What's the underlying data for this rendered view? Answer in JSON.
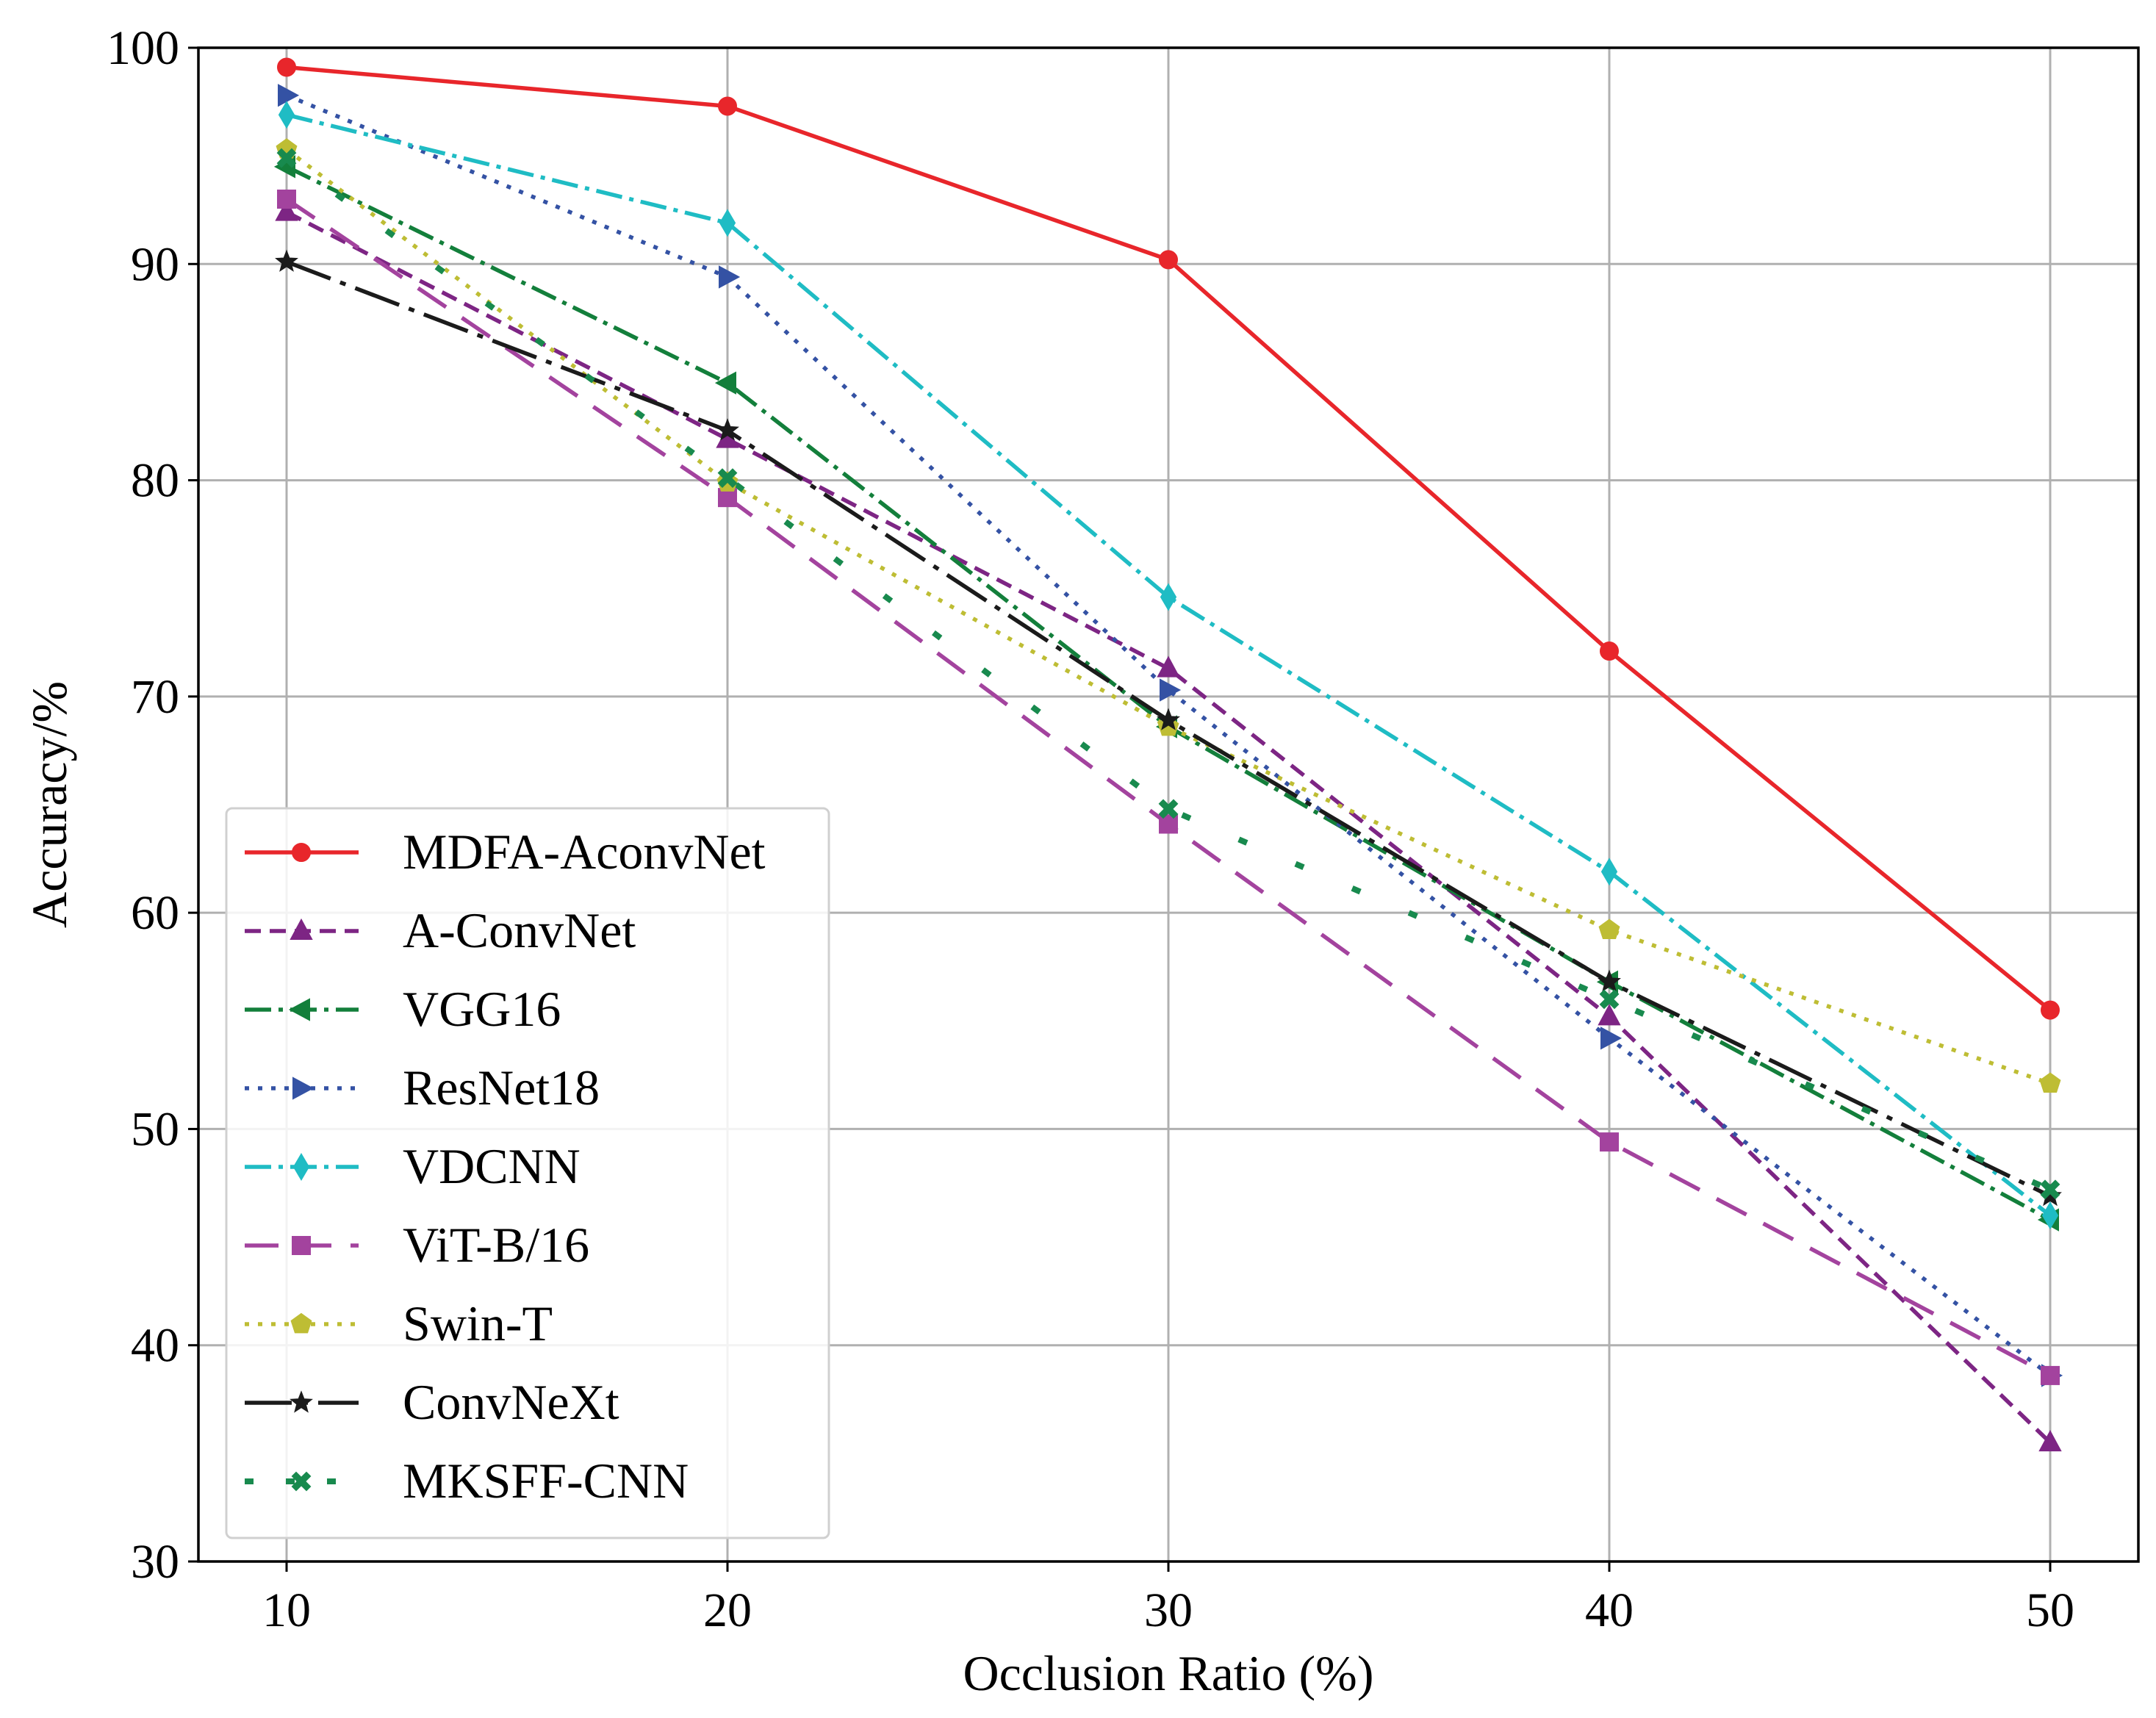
{
  "chart_data": {
    "type": "line",
    "title": "",
    "xlabel": "Occlusion Ratio (%)",
    "ylabel": "Accuracy/%",
    "x": [
      10,
      20,
      30,
      40,
      50
    ],
    "xticks": [
      "10",
      "20",
      "30",
      "40",
      "50"
    ],
    "yticks": [
      "30",
      "40",
      "50",
      "60",
      "70",
      "80",
      "90",
      "100"
    ],
    "xlim": [
      8,
      52
    ],
    "ylim": [
      30,
      100
    ],
    "grid": true,
    "legend_position": "lower-left",
    "series": [
      {
        "name": "MDFA-AconvNet",
        "color": "#e8262b",
        "dash": "solid",
        "marker": "circle",
        "values": [
          99.1,
          97.3,
          90.2,
          72.1,
          55.5
        ]
      },
      {
        "name": "A-ConvNet",
        "color": "#7d2584",
        "dash": "dashed",
        "marker": "triangle-up",
        "values": [
          92.4,
          81.9,
          71.3,
          55.2,
          35.5
        ]
      },
      {
        "name": "VGG16",
        "color": "#137f3b",
        "dash": "dashdot",
        "marker": "triangle-left",
        "values": [
          94.5,
          84.5,
          68.6,
          56.8,
          45.8
        ]
      },
      {
        "name": "ResNet18",
        "color": "#3452a4",
        "dash": "dotted",
        "marker": "triangle-right",
        "values": [
          97.8,
          89.4,
          70.3,
          54.2,
          38.6
        ]
      },
      {
        "name": "VDCNN",
        "color": "#1fbcc4",
        "dash": "dashdot",
        "marker": "thin-diamond",
        "values": [
          96.9,
          91.9,
          74.6,
          61.9,
          46.0
        ]
      },
      {
        "name": "ViT-B/16",
        "color": "#a3439e",
        "dash": "longdash",
        "marker": "square",
        "values": [
          93.0,
          79.2,
          64.1,
          49.4,
          38.6
        ]
      },
      {
        "name": "Swin-T",
        "color": "#bebd34",
        "dash": "dotted",
        "marker": "pentagon",
        "values": [
          95.3,
          79.9,
          68.6,
          59.2,
          52.1
        ]
      },
      {
        "name": "ConvNeXt",
        "color": "#1b1b1b",
        "dash": "longdashdot",
        "marker": "star",
        "values": [
          90.1,
          82.3,
          68.9,
          56.8,
          46.9
        ]
      },
      {
        "name": "MKSFF-CNN",
        "color": "#188a4e",
        "dash": "sparse-dot",
        "marker": "x-filled",
        "values": [
          94.9,
          80.1,
          64.8,
          56.0,
          47.2
        ]
      }
    ]
  }
}
